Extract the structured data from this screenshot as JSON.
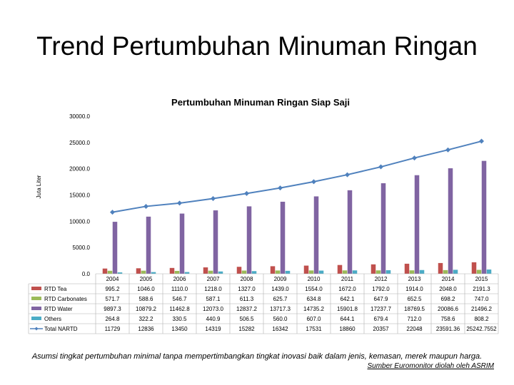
{
  "slide_title": "Trend Pertumbuhan Minuman Ringan",
  "caption": "Asumsi tingkat pertumbuhan minimal tanpa mempertimbangkan tingkat inovasi baik dalam jenis, kemasan, merek maupun harga.",
  "source": "Sumber Euromonitor diolah oleh ASRIM",
  "chart_data": {
    "type": "bar",
    "title": "Pertumbuhan Minuman Ringan Siap Saji",
    "ylabel": "Juta Liter",
    "ylim": [
      0,
      30000
    ],
    "yticks": [
      "0.0",
      "5000.0",
      "10000.0",
      "15000.0",
      "20000.0",
      "25000.0",
      "30000.0"
    ],
    "ytick_values": [
      0,
      5000,
      10000,
      15000,
      20000,
      25000,
      30000
    ],
    "categories": [
      "2004",
      "2005",
      "2006",
      "2007",
      "2008",
      "2009",
      "2010",
      "2011",
      "2012",
      "2013",
      "2014",
      "2015"
    ],
    "legend": "data-table-bottom",
    "series": [
      {
        "name": "RTD Tea",
        "kind": "bar",
        "color": "#c0504d",
        "values": [
          995.2,
          1046.0,
          1110.0,
          1218.0,
          1327.0,
          1439.0,
          1554.0,
          1672.0,
          1792.0,
          1914.0,
          2048.0,
          2191.3
        ],
        "labels": [
          "995.2",
          "1046.0",
          "1110.0",
          "1218.0",
          "1327.0",
          "1439.0",
          "1554.0",
          "1672.0",
          "1792.0",
          "1914.0",
          "2048.0",
          "2191.3"
        ]
      },
      {
        "name": "RTD Carbonates",
        "kind": "bar",
        "color": "#9bbb59",
        "values": [
          571.7,
          588.6,
          546.7,
          587.1,
          611.3,
          625.7,
          634.8,
          642.1,
          647.9,
          652.5,
          698.2,
          747.0
        ],
        "labels": [
          "571.7",
          "588.6",
          "546.7",
          "587.1",
          "611.3",
          "625.7",
          "634.8",
          "642.1",
          "647.9",
          "652.5",
          "698.2",
          "747.0"
        ]
      },
      {
        "name": "RTD Water",
        "kind": "bar",
        "color": "#8064a2",
        "values": [
          9897.3,
          10879.2,
          11462.8,
          12073.0,
          12837.2,
          13717.3,
          14735.2,
          15901.8,
          17237.7,
          18769.5,
          20086.6,
          21496.2
        ],
        "labels": [
          "9897.3",
          "10879.2",
          "11462.8",
          "12073.0",
          "12837.2",
          "13717.3",
          "14735.2",
          "15901.8",
          "17237.7",
          "18769.5",
          "20086.6",
          "21496.2"
        ]
      },
      {
        "name": "Others",
        "kind": "bar",
        "color": "#4bacc6",
        "values": [
          264.8,
          322.2,
          330.5,
          440.9,
          506.5,
          560.0,
          607.0,
          644.1,
          679.4,
          712.0,
          758.6,
          808.2
        ],
        "labels": [
          "264.8",
          "322.2",
          "330.5",
          "440.9",
          "506.5",
          "560.0",
          "607.0",
          "644.1",
          "679.4",
          "712.0",
          "758.6",
          "808.2"
        ]
      },
      {
        "name": "Total NARTD",
        "kind": "line",
        "color": "#4f81bd",
        "values": [
          11729,
          12836,
          13450,
          14319,
          15282,
          16342,
          17531,
          18860,
          20357,
          22048,
          23591.36,
          25242.7552
        ],
        "labels": [
          "11729",
          "12836",
          "13450",
          "14319",
          "15282",
          "16342",
          "17531",
          "18860",
          "20357",
          "22048",
          "23591.36",
          "25242.7552"
        ]
      }
    ]
  }
}
